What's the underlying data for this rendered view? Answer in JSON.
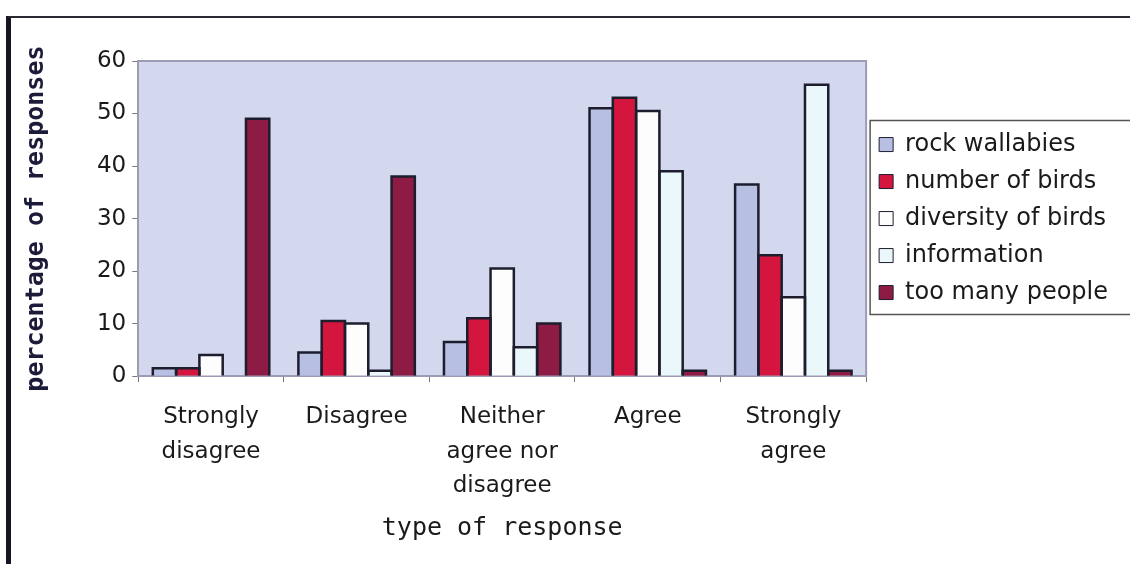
{
  "chart_data": {
    "type": "bar",
    "xlabel": "type of response",
    "ylabel": "percentage of responses",
    "categories": [
      "Strongly disagree",
      "Disagree",
      "Neither agree nor disagree",
      "Agree",
      "Strongly agree"
    ],
    "series": [
      {
        "name": "rock wallabies",
        "color": "#b7c0e3",
        "values": [
          1.5,
          4.5,
          6.5,
          51,
          36.5
        ]
      },
      {
        "name": "number of birds",
        "color": "#d4163f",
        "values": [
          1.5,
          10.5,
          11,
          53,
          23
        ]
      },
      {
        "name": "diversity of birds",
        "color": "#fdfdfd",
        "values": [
          4,
          10,
          20.5,
          50.5,
          15
        ]
      },
      {
        "name": "information",
        "color": "#eaf8fb",
        "values": [
          0,
          1,
          5.5,
          39,
          55.5
        ]
      },
      {
        "name": "too many people",
        "color": "#8e1b44",
        "values": [
          49,
          38,
          10,
          1,
          1
        ]
      }
    ],
    "ylim": [
      0,
      60
    ],
    "yticks": [
      0,
      10,
      20,
      30,
      40,
      50,
      60
    ],
    "grid": false,
    "legend": "right"
  }
}
